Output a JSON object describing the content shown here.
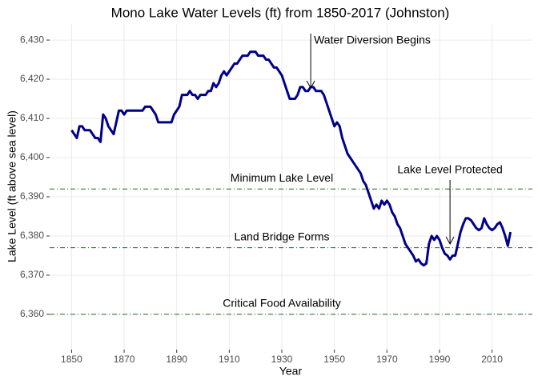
{
  "chart_data": {
    "type": "line",
    "title": "Mono Lake Water Levels (ft) from 1850-2017 (Johnston)",
    "x_label": "Year",
    "y_label": "Lake Level (ft above sea level)",
    "x": [
      1850,
      1851,
      1852,
      1853,
      1854,
      1855,
      1856,
      1857,
      1858,
      1859,
      1860,
      1861,
      1862,
      1863,
      1864,
      1865,
      1866,
      1867,
      1868,
      1869,
      1870,
      1871,
      1872,
      1873,
      1874,
      1875,
      1876,
      1877,
      1878,
      1879,
      1880,
      1881,
      1882,
      1883,
      1884,
      1885,
      1886,
      1887,
      1888,
      1889,
      1890,
      1891,
      1892,
      1893,
      1894,
      1895,
      1896,
      1897,
      1898,
      1899,
      1900,
      1901,
      1902,
      1903,
      1904,
      1905,
      1906,
      1907,
      1908,
      1909,
      1910,
      1911,
      1912,
      1913,
      1914,
      1915,
      1916,
      1917,
      1918,
      1919,
      1920,
      1921,
      1922,
      1923,
      1924,
      1925,
      1926,
      1927,
      1928,
      1929,
      1930,
      1931,
      1932,
      1933,
      1934,
      1935,
      1936,
      1937,
      1938,
      1939,
      1940,
      1941,
      1942,
      1943,
      1944,
      1945,
      1946,
      1947,
      1948,
      1949,
      1950,
      1951,
      1952,
      1953,
      1954,
      1955,
      1956,
      1957,
      1958,
      1959,
      1960,
      1961,
      1962,
      1963,
      1964,
      1965,
      1966,
      1967,
      1968,
      1969,
      1970,
      1971,
      1972,
      1973,
      1974,
      1975,
      1976,
      1977,
      1978,
      1979,
      1980,
      1981,
      1982,
      1983,
      1984,
      1985,
      1986,
      1987,
      1988,
      1989,
      1990,
      1991,
      1992,
      1993,
      1994,
      1995,
      1996,
      1997,
      1998,
      1999,
      2000,
      2001,
      2002,
      2003,
      2004,
      2005,
      2006,
      2007,
      2008,
      2009,
      2010,
      2011,
      2012,
      2013,
      2014,
      2015,
      2016,
      2017
    ],
    "values": [
      6407,
      6406,
      6405,
      6408,
      6408,
      6407,
      6407,
      6407,
      6406,
      6405,
      6405,
      6404,
      6411,
      6410,
      6408,
      6407,
      6406,
      6409,
      6412,
      6412,
      6411,
      6412,
      6412,
      6412,
      6412,
      6412,
      6412,
      6412,
      6413,
      6413,
      6413,
      6412,
      6411,
      6409,
      6409,
      6409,
      6409,
      6409,
      6409,
      6411,
      6412,
      6413,
      6416,
      6416,
      6416,
      6417,
      6416,
      6416,
      6415,
      6416,
      6416,
      6416,
      6417,
      6417,
      6419,
      6418,
      6419,
      6421,
      6422,
      6421,
      6422,
      6423,
      6424,
      6424,
      6425,
      6426,
      6426,
      6426,
      6427,
      6427,
      6427,
      6426,
      6426,
      6426,
      6425,
      6425,
      6424,
      6423,
      6423,
      6422,
      6421,
      6419,
      6417,
      6415,
      6415,
      6415,
      6416,
      6418,
      6418,
      6417,
      6417,
      6418,
      6418,
      6417,
      6417,
      6417,
      6416,
      6414,
      6412,
      6410,
      6408,
      6409,
      6408,
      6405,
      6403,
      6401,
      6400,
      6399,
      6398,
      6397,
      6396,
      6394,
      6393,
      6391,
      6389,
      6387,
      6388,
      6387,
      6389,
      6388,
      6389,
      6388,
      6386,
      6385,
      6383,
      6382,
      6380,
      6378,
      6377,
      6376,
      6375,
      6373.5,
      6374,
      6373,
      6372.5,
      6373,
      6378,
      6380,
      6379,
      6380,
      6379,
      6377,
      6375.5,
      6375,
      6374,
      6375,
      6375,
      6378,
      6381,
      6383,
      6384.5,
      6384.5,
      6384,
      6383,
      6382,
      6381.5,
      6382,
      6384.5,
      6383,
      6382,
      6381.5,
      6382,
      6383,
      6383.5,
      6382,
      6380,
      6377.5,
      6381
    ],
    "color": "#00008b",
    "xlim": [
      1841.65,
      2025.35
    ],
    "ylim": [
      6351,
      6434.1
    ],
    "xticks": [
      1850,
      1870,
      1890,
      1910,
      1930,
      1950,
      1970,
      1990,
      2010
    ],
    "yticks": [
      {
        "value": 6360,
        "label": "6,360"
      },
      {
        "value": 6370,
        "label": "6,370"
      },
      {
        "value": 6380,
        "label": "6,380"
      },
      {
        "value": 6390,
        "label": "6,390"
      },
      {
        "value": 6400,
        "label": "6,400"
      },
      {
        "value": 6410,
        "label": "6,410"
      },
      {
        "value": 6420,
        "label": "6,420"
      },
      {
        "value": 6430,
        "label": "6,430"
      }
    ],
    "grid": true,
    "hlines": [
      {
        "value": 6392,
        "label": "Minimum Lake Level"
      },
      {
        "value": 6377,
        "label": "Land Bridge Forms"
      },
      {
        "value": 6360,
        "label": "Critical Food Availability"
      }
    ],
    "hline_color": "#1e6b1e",
    "annotations": [
      {
        "label": "Water Diversion Begins",
        "x": 1941
      },
      {
        "label": "Lake Level Protected",
        "x": 1994
      }
    ]
  }
}
